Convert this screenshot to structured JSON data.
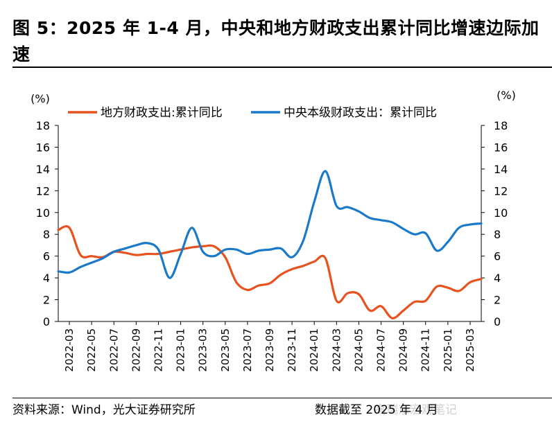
{
  "header": {
    "title": "图 5：2025 年 1-4 月，中央和地方财政支出累计同比增速边际加速"
  },
  "footer": {
    "source": "资料来源：Wind，光大证券研究所",
    "cutoff": "数据截至 2025 年 4 月",
    "watermark": "高瑞东宏观笔记"
  },
  "chart_data": {
    "type": "line",
    "y_unit_left": "(%)",
    "y_unit_right": "(%)",
    "ylim": [
      0,
      18
    ],
    "yticks": [
      0,
      2,
      4,
      6,
      8,
      10,
      12,
      14,
      16,
      18
    ],
    "grid": false,
    "legend_position": "top",
    "x_tick_labels": [
      "2022-03",
      "2022-05",
      "2022-07",
      "2022-09",
      "2022-11",
      "2023-01",
      "2023-03",
      "2023-05",
      "2023-07",
      "2023-09",
      "2023-11",
      "2024-01",
      "2024-03",
      "2024-05",
      "2024-07",
      "2024-09",
      "2024-11",
      "2025-01",
      "2025-03"
    ],
    "x": [
      "2022-02",
      "2022-03",
      "2022-04",
      "2022-05",
      "2022-06",
      "2022-07",
      "2022-08",
      "2022-09",
      "2022-10",
      "2022-11",
      "2022-12",
      "2023-01",
      "2023-02",
      "2023-03",
      "2023-04",
      "2023-05",
      "2023-06",
      "2023-07",
      "2023-08",
      "2023-09",
      "2023-10",
      "2023-11",
      "2023-12",
      "2024-01",
      "2024-02",
      "2024-03",
      "2024-04",
      "2024-05",
      "2024-06",
      "2024-07",
      "2024-08",
      "2024-09",
      "2024-10",
      "2024-11",
      "2024-12",
      "2025-01",
      "2025-02",
      "2025-03",
      "2025-04"
    ],
    "series": [
      {
        "name": "地方财政支出:累计同比",
        "color": "#E8521E",
        "axis": "left",
        "values": [
          8.4,
          8.6,
          6.1,
          6.0,
          5.9,
          6.4,
          6.3,
          6.1,
          6.2,
          6.2,
          6.4,
          6.6,
          6.8,
          6.9,
          6.9,
          5.9,
          3.6,
          2.9,
          3.3,
          3.5,
          4.3,
          4.8,
          5.1,
          5.5,
          5.8,
          1.9,
          2.6,
          2.5,
          1.0,
          1.4,
          0.3,
          1.0,
          1.8,
          1.9,
          3.2,
          3.1,
          2.8,
          3.6,
          3.9
        ]
      },
      {
        "name": "中央本级财政支出：累计同比",
        "color": "#1A79C9",
        "axis": "right",
        "values": [
          4.6,
          4.5,
          5.0,
          5.4,
          5.8,
          6.4,
          6.7,
          7.0,
          7.2,
          6.6,
          4.0,
          6.2,
          8.6,
          6.4,
          6.0,
          6.6,
          6.6,
          6.2,
          6.5,
          6.6,
          6.7,
          5.9,
          7.4,
          11.0,
          13.8,
          10.6,
          10.5,
          10.1,
          9.5,
          9.3,
          9.1,
          8.5,
          8.0,
          8.1,
          6.5,
          7.3,
          8.6,
          8.9,
          9.0
        ]
      }
    ]
  }
}
